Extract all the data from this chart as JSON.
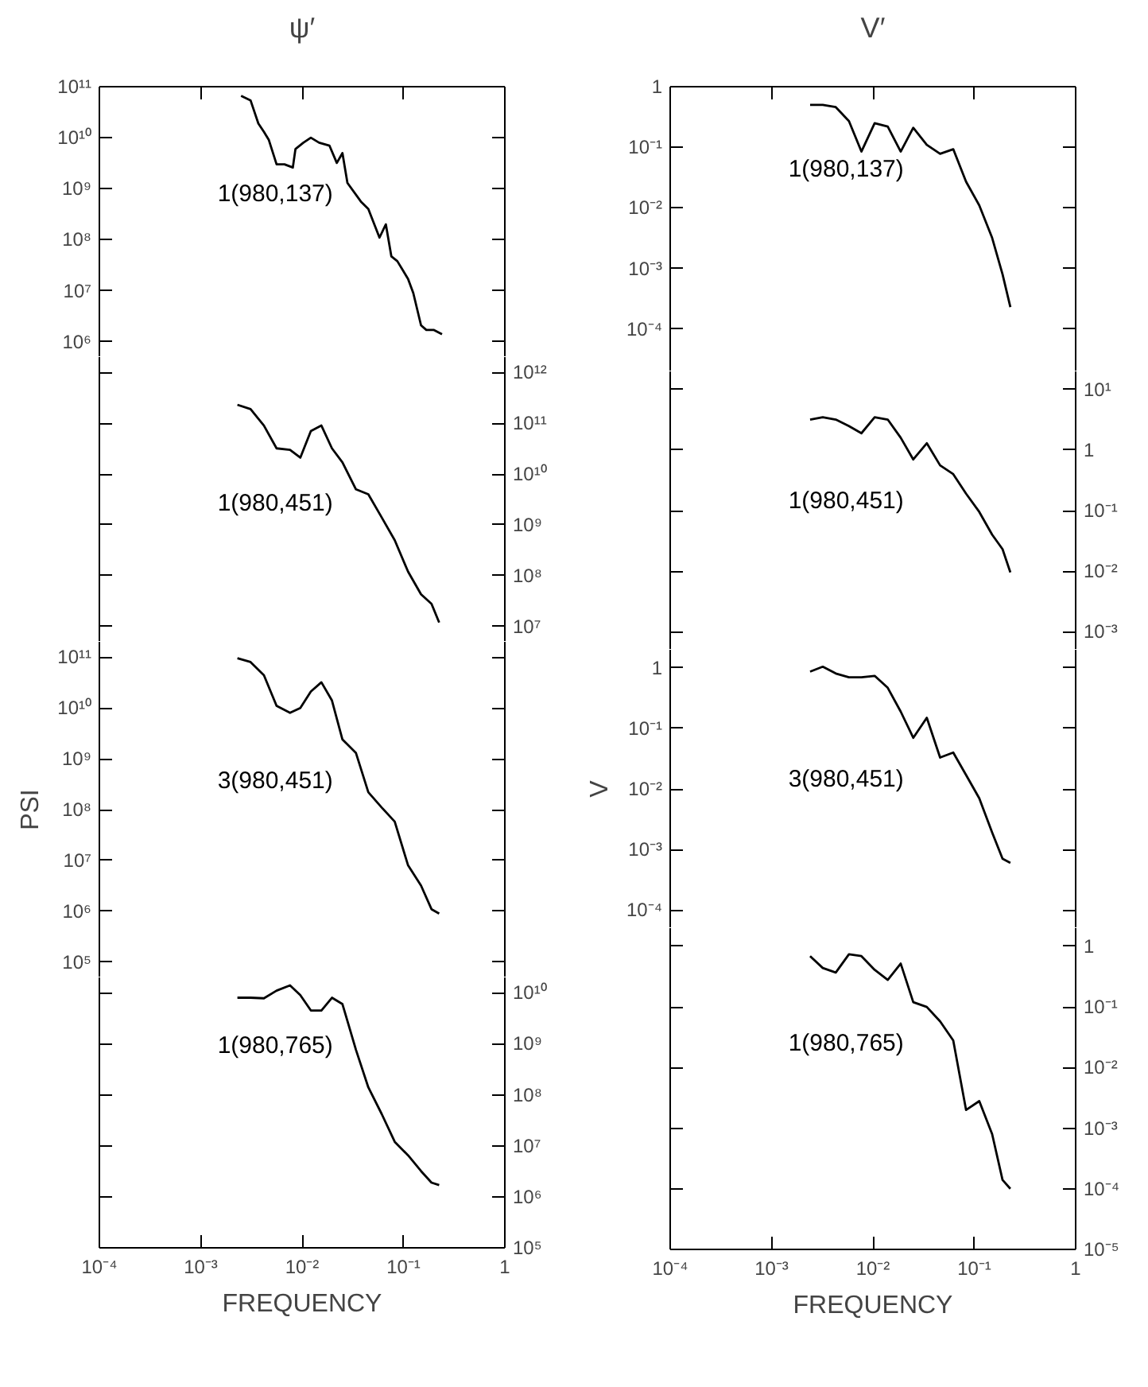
{
  "chart_data": [
    {
      "type": "line",
      "title": "ψ′",
      "log": "xy",
      "tick_labels": "y",
      "xlim": [
        0.0001,
        1
      ],
      "xticks": [
        {
          "value": 0.001,
          "label": null
        },
        {
          "value": 0.01,
          "label": null
        },
        {
          "value": 0.1,
          "label": null
        }
      ],
      "ylim": [
        500000.0,
        100000000000.0
      ],
      "yticks": [
        {
          "value": 100000000000.0,
          "label": "10¹¹"
        },
        {
          "value": 10000000000.0,
          "label": "10¹⁰"
        },
        {
          "value": 1000000000.0,
          "label": "10⁹"
        },
        {
          "value": 100000000.0,
          "label": "10⁸"
        },
        {
          "value": 10000000.0,
          "label": "10⁷"
        },
        {
          "value": 1000000.0,
          "label": "10⁶"
        }
      ],
      "series": [
        {
          "name": "1(980,137)",
          "color": "#000000",
          "x": [
            0.0025,
            0.0031,
            0.0037,
            0.0042,
            0.0047,
            0.0056,
            0.0067,
            0.0081,
            0.0086,
            0.0103,
            0.0122,
            0.0147,
            0.0186,
            0.022,
            0.025,
            0.028,
            0.038,
            0.045,
            0.058,
            0.067,
            0.076,
            0.087,
            0.111,
            0.125,
            0.149,
            0.168,
            0.2,
            0.24
          ],
          "values": [
            66000000000.0,
            54000000000.0,
            19000000000.0,
            13000000000.0,
            9000000000.0,
            3000000000.0,
            3000000000.0,
            2600000000.0,
            6000000000.0,
            8000000000.0,
            10000000000.0,
            8000000000.0,
            7000000000.0,
            3200000000.0,
            5000000000.0,
            1300000000.0,
            560000000.0,
            400000000.0,
            110000000.0,
            200000000.0,
            47000000.0,
            38000000.0,
            17000000.0,
            9000000.0,
            2100000.0,
            1700000.0,
            1700000.0,
            1400000.0
          ]
        }
      ]
    },
    {
      "type": "line",
      "log": "xy",
      "tick_labels": "y",
      "xlim": [
        0.0001,
        1
      ],
      "ylim": [
        5000000.0,
        2000000000000.0
      ],
      "yticks": [
        {
          "value": 1000000000000.0,
          "label": "10¹²"
        },
        {
          "value": 100000000000.0,
          "label": "10¹¹"
        },
        {
          "value": 10000000000.0,
          "label": "10¹⁰"
        },
        {
          "value": 1000000000.0,
          "label": "10⁹"
        },
        {
          "value": 100000000.0,
          "label": "10⁸"
        },
        {
          "value": 10000000.0,
          "label": "10⁷"
        }
      ],
      "series": [
        {
          "name": "1(980,451)",
          "color": "#000000",
          "x": [
            0.0023,
            0.0031,
            0.0042,
            0.0056,
            0.0076,
            0.0096,
            0.0122,
            0.0155,
            0.0197,
            0.025,
            0.034,
            0.045,
            0.061,
            0.082,
            0.111,
            0.149,
            0.189,
            0.225
          ],
          "values": [
            230000000000.0,
            190000000000.0,
            90000000000.0,
            32000000000.0,
            30000000000.0,
            21000000000.0,
            70000000000.0,
            90000000000.0,
            32000000000.0,
            17000000000.0,
            5000000000.0,
            4000000000.0,
            1400000000.0,
            500000000.0,
            120000000.0,
            43000000.0,
            28000000.0,
            12000000.0
          ]
        }
      ]
    },
    {
      "type": "line",
      "ylabel": "PSI",
      "log": "xy",
      "tick_labels": "y",
      "xlim": [
        0.0001,
        1
      ],
      "ylim": [
        50000.0,
        200000000000.0
      ],
      "yticks": [
        {
          "value": 100000000000.0,
          "label": "10¹¹"
        },
        {
          "value": 10000000000.0,
          "label": "10¹⁰"
        },
        {
          "value": 1000000000.0,
          "label": "10⁹"
        },
        {
          "value": 100000000.0,
          "label": "10⁸"
        },
        {
          "value": 10000000.0,
          "label": "10⁷"
        },
        {
          "value": 1000000.0,
          "label": "10⁶"
        },
        {
          "value": 100000.0,
          "label": "10⁵"
        }
      ],
      "series": [
        {
          "name": "3(980,451)",
          "color": "#000000",
          "x": [
            0.0023,
            0.0031,
            0.0042,
            0.0056,
            0.0076,
            0.0096,
            0.0122,
            0.0155,
            0.0197,
            0.025,
            0.034,
            0.045,
            0.061,
            0.082,
            0.111,
            0.149,
            0.189,
            0.225
          ],
          "values": [
            95000000000.0,
            80000000000.0,
            44000000000.0,
            11000000000.0,
            8000000000.0,
            10000000000.0,
            21000000000.0,
            32000000000.0,
            14000000000.0,
            2400000000.0,
            1300000000.0,
            220000000.0,
            110000000.0,
            58000000.0,
            8000000.0,
            3200000.0,
            1100000.0,
            900000.0
          ]
        }
      ]
    },
    {
      "type": "line",
      "xlabel": "FREQUENCY",
      "log": "xy",
      "xlim": [
        0.0001,
        1
      ],
      "xticks": [
        {
          "value": 0.0001,
          "label": "10⁻⁴"
        },
        {
          "value": 0.001,
          "label": "10⁻³"
        },
        {
          "value": 0.01,
          "label": "10⁻²"
        },
        {
          "value": 0.1,
          "label": "10⁻¹"
        },
        1
      ],
      "ylim": [
        100000.0,
        20000000000.0
      ],
      "yticks": [
        {
          "value": 10000000000.0,
          "label": "10¹⁰"
        },
        {
          "value": 1000000000.0,
          "label": "10⁹"
        },
        {
          "value": 100000000.0,
          "label": "10⁸"
        },
        {
          "value": 10000000.0,
          "label": "10⁷"
        },
        {
          "value": 1000000.0,
          "label": "10⁶"
        },
        {
          "value": 100000.0,
          "label": "10⁵"
        }
      ],
      "series": [
        {
          "name": "1(980,765)",
          "color": "#000000",
          "x": [
            0.0023,
            0.0031,
            0.0042,
            0.0056,
            0.0076,
            0.0096,
            0.0122,
            0.0155,
            0.0197,
            0.025,
            0.034,
            0.045,
            0.061,
            0.082,
            0.111,
            0.149,
            0.189,
            0.225
          ],
          "values": [
            8000000000.0,
            8000000000.0,
            7800000000.0,
            11000000000.0,
            14000000000.0,
            9000000000.0,
            4500000000.0,
            4500000000.0,
            8000000000.0,
            6000000000.0,
            760000000.0,
            140000000.0,
            42000000.0,
            12000000.0,
            6500000.0,
            3200000.0,
            1900000.0,
            1700000.0
          ]
        }
      ]
    },
    {
      "type": "line",
      "title": "V′",
      "log": "xy",
      "tick_labels": "y",
      "xlim": [
        0.0001,
        1
      ],
      "xticks": [
        {
          "value": 0.001,
          "label": null
        },
        {
          "value": 0.01,
          "label": null
        },
        {
          "value": 0.1,
          "label": null
        }
      ],
      "ylim": [
        2e-05,
        1
      ],
      "yticks": [
        {
          "value": 1,
          "label": "1"
        },
        {
          "value": 0.1,
          "label": "10⁻¹"
        },
        {
          "value": 0.01,
          "label": "10⁻²"
        },
        {
          "value": 0.001,
          "label": "10⁻³"
        },
        {
          "value": 0.0001,
          "label": "10⁻⁴"
        }
      ],
      "series": [
        {
          "name": "1(980,137)",
          "color": "#000000",
          "x": [
            0.0024,
            0.0032,
            0.0043,
            0.0058,
            0.0077,
            0.0104,
            0.014,
            0.0188,
            0.025,
            0.034,
            0.046,
            0.062,
            0.083,
            0.112,
            0.15,
            0.19,
            0.227
          ],
          "values": [
            0.5,
            0.5,
            0.46,
            0.27,
            0.085,
            0.25,
            0.22,
            0.085,
            0.21,
            0.11,
            0.078,
            0.093,
            0.027,
            0.011,
            0.0032,
            0.0008,
            0.00023
          ]
        }
      ]
    },
    {
      "type": "line",
      "log": "xy",
      "tick_labels": "y",
      "xlim": [
        0.0001,
        1
      ],
      "ylim": [
        0.0005,
        20
      ],
      "yticks": [
        {
          "value": 10,
          "label": "10¹"
        },
        {
          "value": 1,
          "label": "1"
        },
        {
          "value": 0.1,
          "label": "10⁻¹"
        },
        {
          "value": 0.01,
          "label": "10⁻²"
        },
        {
          "value": 0.001,
          "label": "10⁻³"
        }
      ],
      "series": [
        {
          "name": "1(980,451)",
          "color": "#000000",
          "x": [
            0.0024,
            0.0032,
            0.0043,
            0.0058,
            0.0077,
            0.0104,
            0.014,
            0.0188,
            0.025,
            0.034,
            0.046,
            0.062,
            0.083,
            0.112,
            0.15,
            0.19,
            0.227
          ],
          "values": [
            3.2,
            3.5,
            3.2,
            2.5,
            1.9,
            3.5,
            3.2,
            1.6,
            0.7,
            1.3,
            0.56,
            0.4,
            0.19,
            0.095,
            0.04,
            0.023,
            0.0095
          ]
        }
      ]
    },
    {
      "type": "line",
      "ylabel": "V",
      "log": "xy",
      "tick_labels": "y",
      "xlim": [
        0.0001,
        1
      ],
      "ylim": [
        5e-05,
        2
      ],
      "yticks": [
        {
          "value": 1,
          "label": "1"
        },
        {
          "value": 0.1,
          "label": "10⁻¹"
        },
        {
          "value": 0.01,
          "label": "10⁻²"
        },
        {
          "value": 0.001,
          "label": "10⁻³"
        },
        {
          "value": 0.0001,
          "label": "10⁻⁴"
        }
      ],
      "series": [
        {
          "name": "3(980,451)",
          "color": "#000000",
          "x": [
            0.0024,
            0.0032,
            0.0043,
            0.0058,
            0.0077,
            0.0104,
            0.014,
            0.0188,
            0.025,
            0.034,
            0.046,
            0.062,
            0.083,
            0.112,
            0.15,
            0.19,
            0.227
          ],
          "values": [
            0.87,
            1.05,
            0.81,
            0.7,
            0.7,
            0.74,
            0.47,
            0.19,
            0.07,
            0.15,
            0.033,
            0.04,
            0.017,
            0.007,
            0.0019,
            0.0007,
            0.0006
          ]
        }
      ]
    },
    {
      "type": "line",
      "xlabel": "FREQUENCY",
      "log": "xy",
      "xlim": [
        0.0001,
        1
      ],
      "xticks": [
        {
          "value": 0.0001,
          "label": "10⁻⁴"
        },
        {
          "value": 0.001,
          "label": "10⁻³"
        },
        {
          "value": 0.01,
          "label": "10⁻²"
        },
        {
          "value": 0.1,
          "label": "10⁻¹"
        },
        1
      ],
      "ylim": [
        1e-05,
        2
      ],
      "yticks": [
        {
          "value": 1,
          "label": "1"
        },
        {
          "value": 0.1,
          "label": "10⁻¹"
        },
        {
          "value": 0.01,
          "label": "10⁻²"
        },
        {
          "value": 0.001,
          "label": "10⁻³"
        },
        {
          "value": 0.0001,
          "label": "10⁻⁴"
        },
        {
          "value": 1e-05,
          "label": "10⁻⁵"
        }
      ],
      "series": [
        {
          "name": "1(980,765)",
          "color": "#000000",
          "x": [
            0.0024,
            0.0032,
            0.0043,
            0.0058,
            0.0077,
            0.0104,
            0.014,
            0.0188,
            0.025,
            0.034,
            0.046,
            0.062,
            0.083,
            0.112,
            0.15,
            0.19,
            0.227
          ],
          "values": [
            0.69,
            0.44,
            0.37,
            0.74,
            0.69,
            0.41,
            0.28,
            0.52,
            0.12,
            0.1,
            0.058,
            0.028,
            0.002,
            0.0028,
            0.0008,
            0.00014,
            0.0001
          ]
        }
      ]
    }
  ]
}
